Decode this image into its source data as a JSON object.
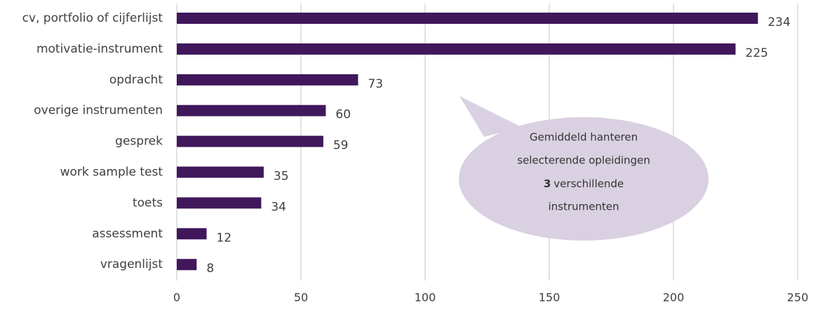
{
  "chart_data": {
    "type": "bar",
    "horizontal": true,
    "categories": [
      "cv, portfolio of cijferlijst",
      "motivatie-instrument",
      "opdracht",
      "overige instrumenten",
      "gesprek",
      "work sample test",
      "toets",
      "assessment",
      "vragenlijst"
    ],
    "values": [
      234,
      225,
      73,
      60,
      59,
      35,
      34,
      12,
      8
    ],
    "color": "#40175b",
    "xlim": [
      0,
      250
    ],
    "xticks": [
      0,
      50,
      100,
      150,
      200,
      250
    ],
    "grid": true,
    "annotation": {
      "lines": [
        "Gemiddeld hanteren",
        "selecterende opleidingen"
      ],
      "number": "3",
      "rest": [
        "verschillende",
        "instrumenten"
      ],
      "color": "#d9d0e1"
    }
  }
}
